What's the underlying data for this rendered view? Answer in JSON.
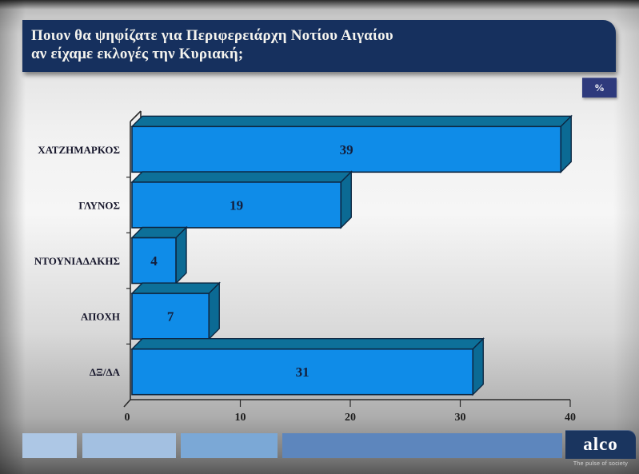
{
  "slide": {
    "title_line1": "Ποιον θα ψηφίζατε για Περιφερειάρχη Νοτίου Αιγαίου",
    "title_line2": "αν είχαμε εκλογές την Κυριακή;",
    "percent_badge": "%"
  },
  "chart_data": {
    "type": "bar",
    "orientation": "horizontal",
    "title": "Ποιον θα ψηφίζατε για Περιφερειάρχη Νοτίου Αιγαίου αν είχαμε εκλογές την Κυριακή;",
    "unit": "%",
    "categories": [
      "ΧΑΤΖΗΜΑΡΚΟΣ",
      "ΓΛΥΝΟΣ",
      "ΝΤΟΥΝΙΑΔΑΚΗΣ",
      "ΑΠΟΧΗ",
      "ΔΞ/ΔΑ"
    ],
    "values": [
      39,
      19,
      4,
      7,
      31
    ],
    "xlim": [
      0,
      40
    ],
    "xticks": [
      0,
      10,
      20,
      30,
      40
    ],
    "grid": false,
    "legend": false,
    "effect": "3d",
    "colors": {
      "bar_front": "#0f8ce8",
      "bar_top": "#0d7099",
      "bar_side": "#0b6a94",
      "bar_outline": "#0d2742",
      "value_label": "#141f3c",
      "category_label": "#16162b",
      "axis": "#2b2b2b",
      "tick_label": "#1c1c1c"
    }
  },
  "footer": {
    "blocks": [
      {
        "color": "#adc7e5"
      },
      {
        "color": "#a3c0e1"
      },
      {
        "color": "#7ba8d6"
      },
      {
        "color": "#5d86bd"
      }
    ],
    "logo_text": "alco",
    "tagline": "The pulse of society",
    "logo_bg": "#1a355f"
  },
  "colors": {
    "title_bar": "#16305e",
    "badge_bg": "#2e3a7c"
  }
}
